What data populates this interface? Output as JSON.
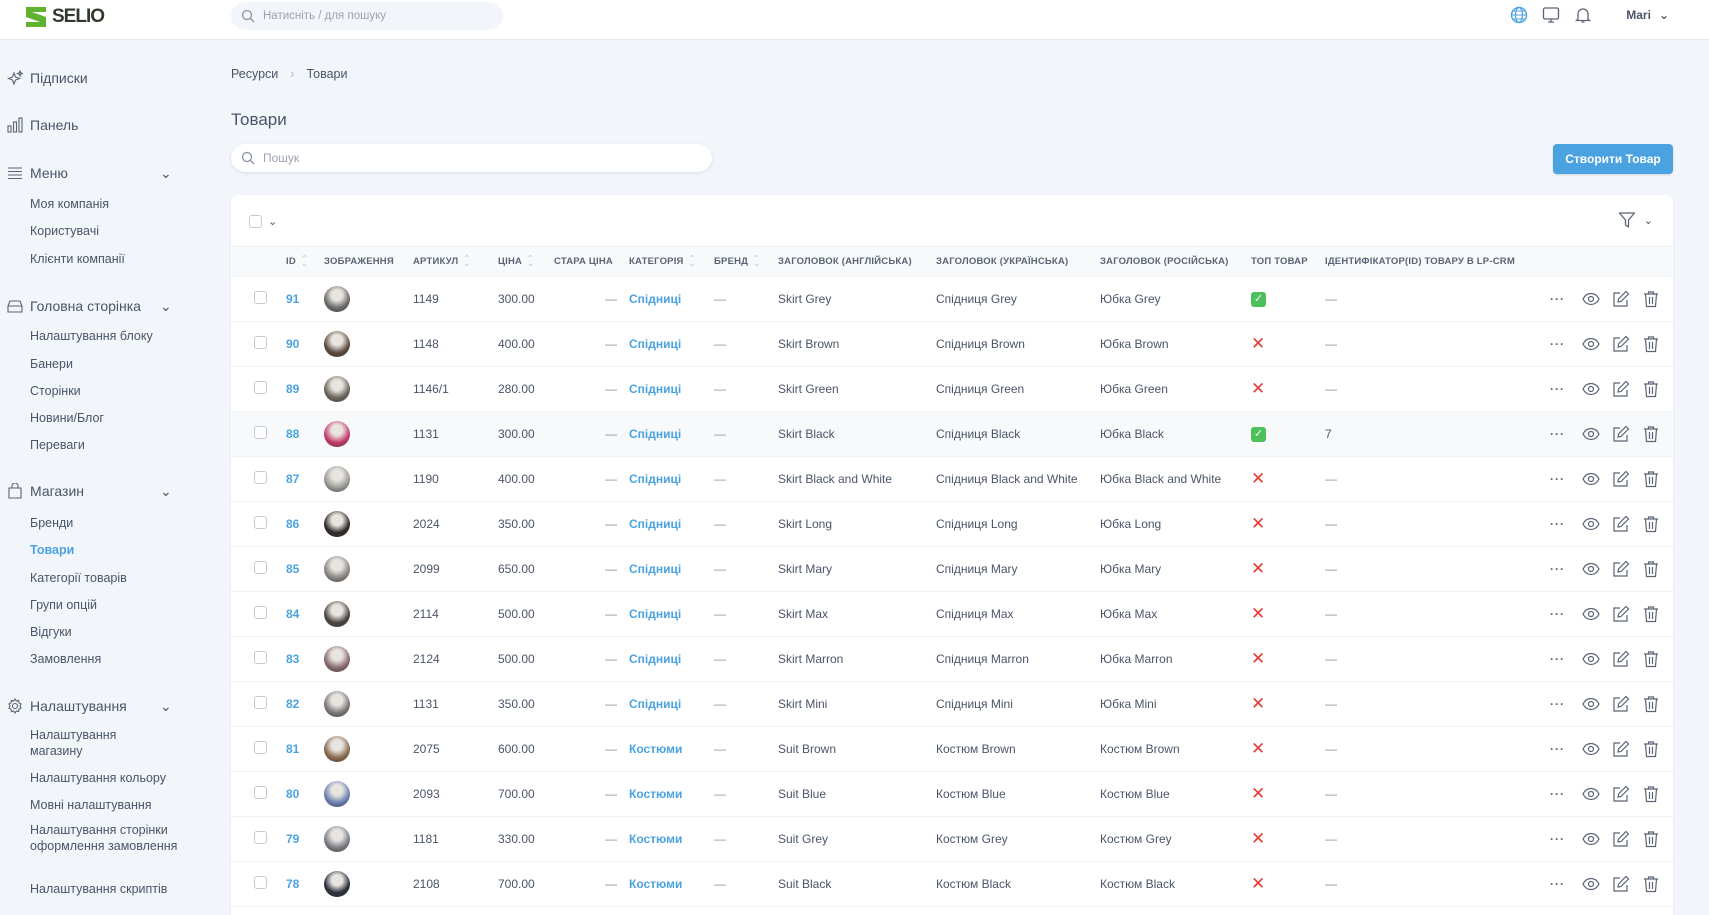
{
  "app": {
    "logo": "SELIO",
    "search_placeholder": "Натисніть / для пошуку",
    "user": "Mari",
    "icons": [
      "globe-icon",
      "monitor-icon",
      "bell-icon"
    ]
  },
  "sidebar": {
    "groups": [
      {
        "label": "Підписки",
        "icon": "sparkles-icon",
        "items": []
      },
      {
        "label": "Панель",
        "icon": "chart-bar-icon",
        "items": []
      },
      {
        "label": "Меню",
        "icon": "menu-icon",
        "expandable": true,
        "items": [
          "Моя компанія",
          "Користувачі",
          "Клієнти компанії"
        ]
      },
      {
        "label": "Головна сторінка",
        "icon": "inbox-icon",
        "expandable": true,
        "items": [
          "Налаштування блоку",
          "Банери",
          "Сторінки",
          "Новини/Блог",
          "Переваги"
        ]
      },
      {
        "label": "Магазин",
        "icon": "shopping-bag-icon",
        "expandable": true,
        "items": [
          "Бренди",
          "Товари",
          "Категорії товарів",
          "Групи опцій",
          "Відгуки",
          "Замовлення"
        ]
      },
      {
        "label": "Налаштування",
        "icon": "gear-icon",
        "expandable": true,
        "items": [
          "Налаштування магазину",
          "Налаштування кольору",
          "Мовні налаштування",
          "Налаштування сторінки оформлення замовлення",
          "Налаштування скриптів"
        ]
      }
    ],
    "active": "Товари"
  },
  "breadcrumb": [
    "Ресурси",
    "Товари"
  ],
  "page": {
    "title": "Товари",
    "search_placeholder": "Пошук",
    "create_button": "Створити Товар"
  },
  "colors": {
    "accent": "#4aa3e0",
    "ok": "#4cc05a",
    "no": "#e53935"
  },
  "table": {
    "columns": [
      "ID",
      "ЗОБРАЖЕННЯ",
      "АРТИКУЛ",
      "ЦІНА",
      "СТАРА ЦІНА",
      "КАТЕГОРІЯ",
      "БРЕНД",
      "ЗАГОЛОВОК (АНГЛІЙСЬКА)",
      "ЗАГОЛОВОК (УКРАЇНСЬКА)",
      "ЗАГОЛОВОК (РОСІЙСЬКА)",
      "ТОП ТОВАР",
      "ІДЕНТИФІКАТОР(ID) ТОВАРУ В LP-CRM"
    ],
    "sortable": [
      true,
      false,
      true,
      true,
      false,
      true,
      true,
      false,
      false,
      false,
      false,
      false
    ],
    "rows": [
      {
        "id": "91",
        "sku": "1149",
        "price": "300.00",
        "old": "—",
        "cat": "Спідниці",
        "brand": "—",
        "en": "Skirt Grey",
        "ua": "Спідниця Grey",
        "ru": "Юбка Grey",
        "top": true,
        "lp": "—",
        "img": "#6b6b6b"
      },
      {
        "id": "90",
        "sku": "1148",
        "price": "400.00",
        "old": "—",
        "cat": "Спідниці",
        "brand": "—",
        "en": "Skirt Brown",
        "ua": "Спідниця Brown",
        "ru": "Юбка Brown",
        "top": false,
        "lp": "—",
        "img": "#5a4a3e"
      },
      {
        "id": "89",
        "sku": "1146/1",
        "price": "280.00",
        "old": "—",
        "cat": "Спідниці",
        "brand": "—",
        "en": "Skirt Green",
        "ua": "Спідниця Green",
        "ru": "Юбка Green",
        "top": false,
        "lp": "—",
        "img": "#6a6658"
      },
      {
        "id": "88",
        "sku": "1131",
        "price": "300.00",
        "old": "—",
        "cat": "Спідниці",
        "brand": "—",
        "en": "Skirt Black",
        "ua": "Спідниця Black",
        "ru": "Юбка Black",
        "top": true,
        "lp": "7",
        "img": "#c43a6a"
      },
      {
        "id": "87",
        "sku": "1190",
        "price": "400.00",
        "old": "—",
        "cat": "Спідниці",
        "brand": "—",
        "en": "Skirt Black and White",
        "ua": "Спідниця Black and White",
        "ru": "Юбка Black and White",
        "top": false,
        "lp": "—",
        "img": "#9a9a94"
      },
      {
        "id": "86",
        "sku": "2024",
        "price": "350.00",
        "old": "—",
        "cat": "Спідниці",
        "brand": "—",
        "en": "Skirt Long",
        "ua": "Спідниця Long",
        "ru": "Юбка Long",
        "top": false,
        "lp": "—",
        "img": "#2e2a28"
      },
      {
        "id": "85",
        "sku": "2099",
        "price": "650.00",
        "old": "—",
        "cat": "Спідниці",
        "brand": "—",
        "en": "Skirt Mary",
        "ua": "Спідниця Mary",
        "ru": "Юбка Mary",
        "top": false,
        "lp": "—",
        "img": "#8a8580"
      },
      {
        "id": "84",
        "sku": "2114",
        "price": "500.00",
        "old": "—",
        "cat": "Спідниці",
        "brand": "—",
        "en": "Skirt Max",
        "ua": "Спідниця Max",
        "ru": "Юбка Max",
        "top": false,
        "lp": "—",
        "img": "#4a4440"
      },
      {
        "id": "83",
        "sku": "2124",
        "price": "500.00",
        "old": "—",
        "cat": "Спідниці",
        "brand": "—",
        "en": "Skirt Marron",
        "ua": "Спідниця Marron",
        "ru": "Юбка Marron",
        "top": false,
        "lp": "—",
        "img": "#8a6a70"
      },
      {
        "id": "82",
        "sku": "1131",
        "price": "350.00",
        "old": "—",
        "cat": "Спідниці",
        "brand": "—",
        "en": "Skirt Mini",
        "ua": "Спідниця Mini",
        "ru": "Юбка Mini",
        "top": false,
        "lp": "—",
        "img": "#7a7878"
      },
      {
        "id": "81",
        "sku": "2075",
        "price": "600.00",
        "old": "—",
        "cat": "Костюми",
        "brand": "—",
        "en": "Suit Brown",
        "ua": "Костюм Brown",
        "ru": "Костюм Brown",
        "top": false,
        "lp": "—",
        "img": "#8a6a50"
      },
      {
        "id": "80",
        "sku": "2093",
        "price": "700.00",
        "old": "—",
        "cat": "Костюми",
        "brand": "—",
        "en": "Suit Blue",
        "ua": "Костюм Blue",
        "ru": "Костюм Blue",
        "top": false,
        "lp": "—",
        "img": "#6a80b0"
      },
      {
        "id": "79",
        "sku": "1181",
        "price": "330.00",
        "old": "—",
        "cat": "Костюми",
        "brand": "—",
        "en": "Suit Grey",
        "ua": "Костюм Grey",
        "ru": "Костюм Grey",
        "top": false,
        "lp": "—",
        "img": "#7a7e84"
      },
      {
        "id": "78",
        "sku": "2108",
        "price": "700.00",
        "old": "—",
        "cat": "Костюми",
        "brand": "—",
        "en": "Suit Black",
        "ua": "Костюм Black",
        "ru": "Костюм Black",
        "top": false,
        "lp": "—",
        "img": "#2a2e3a"
      }
    ]
  }
}
